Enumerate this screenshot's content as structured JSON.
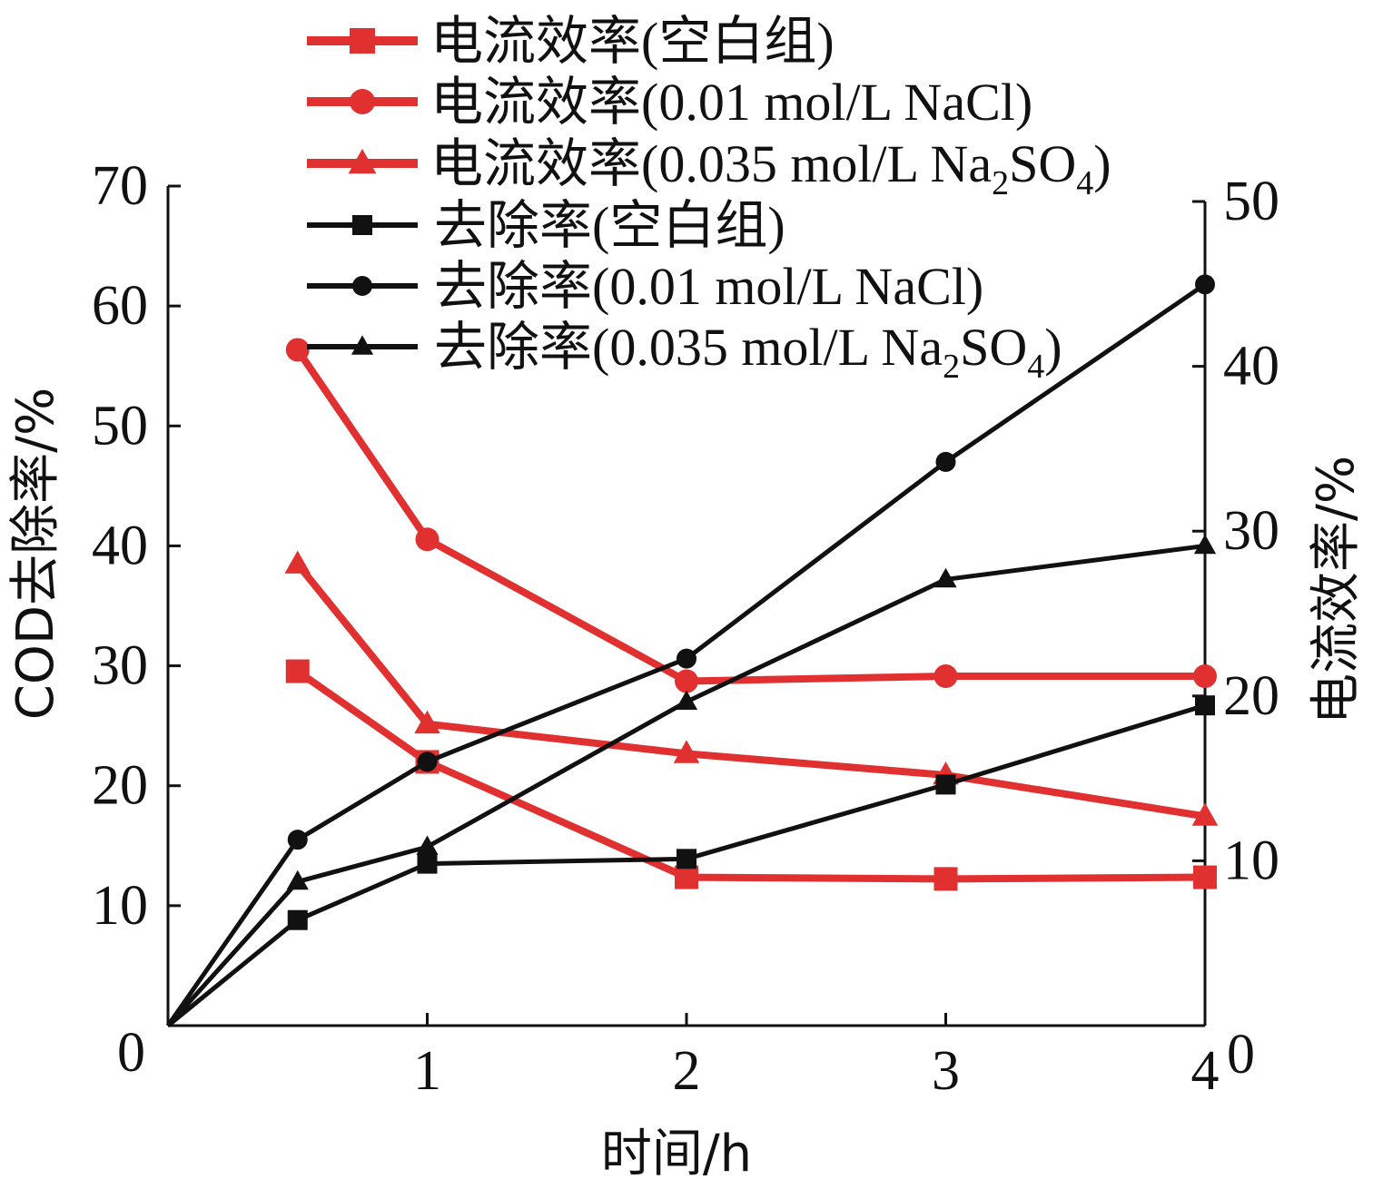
{
  "chart_data": {
    "type": "line",
    "x_label": "时间/h",
    "y_left_label": "COD去除率/%",
    "y_right_label": "电流效率/%",
    "x_ticks": [
      0,
      1,
      2,
      3,
      4
    ],
    "y_left_ticks": [
      0,
      10,
      20,
      30,
      40,
      50,
      60,
      70
    ],
    "y_right_ticks": [
      0,
      10,
      20,
      30,
      40,
      50
    ],
    "x_range": [
      0,
      4
    ],
    "y_left_range": [
      0,
      70
    ],
    "y_right_range": [
      0,
      50
    ],
    "grid": false,
    "legend_position": "top",
    "series": [
      {
        "name": "电流效率(空白组)",
        "axis": "right",
        "color": "#e03030",
        "marker": "square",
        "x": [
          0.5,
          1,
          2,
          3,
          4
        ],
        "y": [
          21.5,
          16,
          9,
          8.9,
          9
        ]
      },
      {
        "name": "电流效率(0.01 mol/L NaCl)",
        "axis": "right",
        "color": "#e03030",
        "marker": "circle",
        "x": [
          0.5,
          1,
          2,
          3,
          4
        ],
        "y": [
          41,
          29.5,
          20.9,
          21.2,
          21.2
        ]
      },
      {
        "name": "电流效率(0.035 mol/L Na",
        "sub": "2",
        "name_tail": "SO",
        "sub2": "4",
        "name_end": ")",
        "axis": "right",
        "color": "#e03030",
        "marker": "triangle",
        "x": [
          0.5,
          1,
          2,
          3,
          4
        ],
        "y": [
          28,
          18.3,
          16.5,
          15.2,
          12.7
        ]
      },
      {
        "name": "去除率(空白组)",
        "axis": "left",
        "color": "#111111",
        "marker": "square",
        "x": [
          0,
          0.5,
          1,
          2,
          3,
          4
        ],
        "y": [
          0,
          8.8,
          13.5,
          13.9,
          20.1,
          26.7
        ]
      },
      {
        "name": "去除率(0.01 mol/L NaCl)",
        "axis": "left",
        "color": "#111111",
        "marker": "circle",
        "x": [
          0,
          0.5,
          1,
          2,
          3,
          4
        ],
        "y": [
          0,
          15.5,
          22,
          30.6,
          47,
          61.8
        ]
      },
      {
        "name": "去除率(0.035 mol/L Na",
        "sub": "2",
        "name_tail": "SO",
        "sub2": "4",
        "name_end": ")",
        "axis": "left",
        "color": "#111111",
        "marker": "triangle",
        "x": [
          0,
          0.5,
          1,
          2,
          3,
          4
        ],
        "y": [
          0,
          12,
          14.9,
          27,
          37.2,
          40
        ]
      }
    ]
  }
}
